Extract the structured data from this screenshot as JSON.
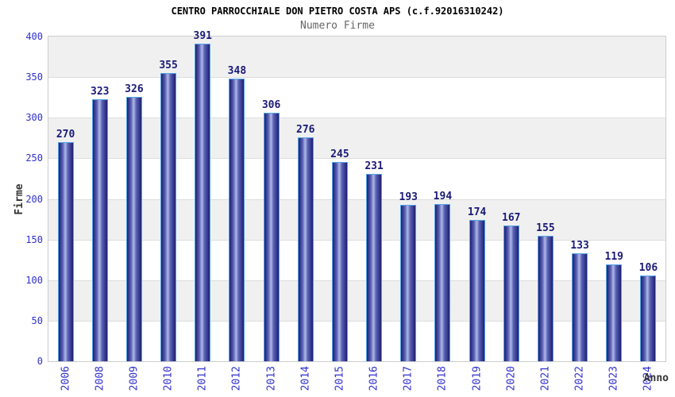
{
  "header": {
    "title": "CENTRO PARROCCHIALE DON PIETRO COSTA APS (c.f.92016310242)",
    "subtitle": "Numero Firme"
  },
  "chart_data": {
    "type": "bar",
    "title": "CENTRO PARROCCHIALE DON PIETRO COSTA APS (c.f.92016310242)",
    "subtitle": "Numero Firme",
    "xlabel": "Anno",
    "ylabel": "Firme",
    "categories": [
      "2006",
      "2008",
      "2009",
      "2010",
      "2011",
      "2012",
      "2013",
      "2014",
      "2015",
      "2016",
      "2017",
      "2018",
      "2019",
      "2020",
      "2021",
      "2022",
      "2023",
      "2024"
    ],
    "values": [
      270,
      323,
      326,
      355,
      391,
      348,
      306,
      276,
      245,
      231,
      193,
      194,
      174,
      167,
      155,
      133,
      119,
      106
    ],
    "ylim": [
      0,
      400
    ],
    "ytick_step": 50,
    "grid": "alternating-horizontal-bands",
    "legend": "none",
    "colors": {
      "bar_dark": "#1f1f72",
      "bar_mid": "#5a62b4",
      "bar_light": "#b0b8e6",
      "bar_border": "#54a4e8",
      "tick_label": "#3030cc",
      "value_label": "#1a1a78",
      "band_gray": "#f0f0f0",
      "band_white": "#ffffff",
      "gridline": "#dddddd",
      "plot_border": "#cccccc",
      "title_color": "#000000",
      "subtitle_color": "#666666",
      "axis_title_color": "#333333"
    }
  }
}
